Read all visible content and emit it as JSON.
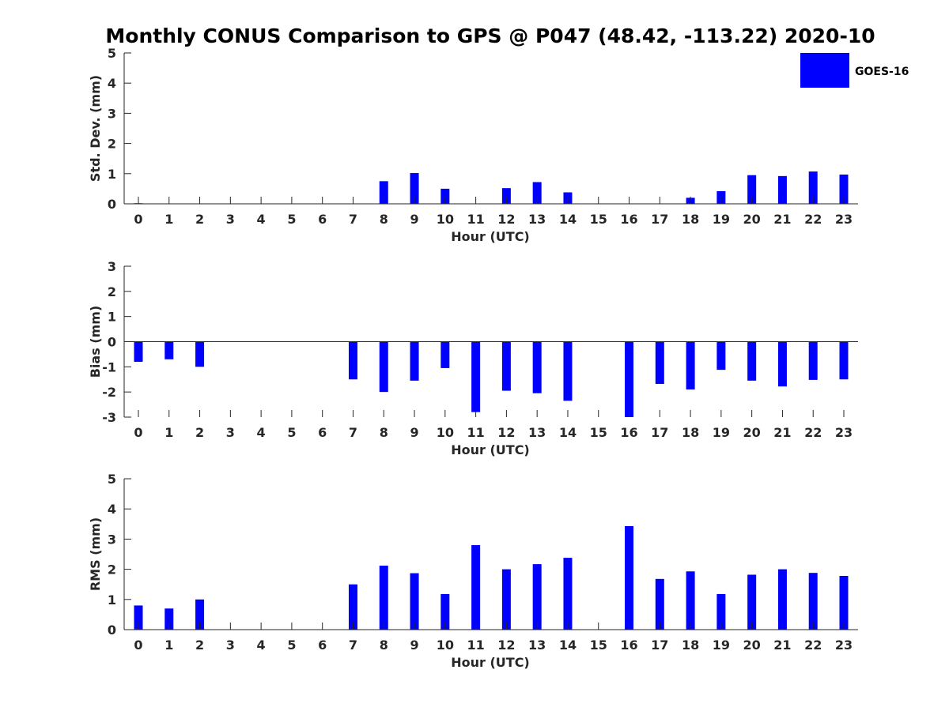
{
  "chart_data": {
    "title": "Monthly CONUS Comparison to GPS @ P047 (48.42, -113.22) 2020-10",
    "legend": {
      "placement": "top-right",
      "entries": [
        "GOES-16"
      ]
    },
    "series_color": "#0000ff",
    "panels": [
      {
        "type": "bar",
        "name": "std",
        "xlabel": "Hour (UTC)",
        "ylabel": "Std. Dev. (mm)",
        "ylim": [
          0,
          5
        ],
        "yticks": [
          0,
          1,
          2,
          3,
          4,
          5
        ],
        "categories": [
          0,
          1,
          2,
          3,
          4,
          5,
          6,
          7,
          8,
          9,
          10,
          11,
          12,
          13,
          14,
          15,
          16,
          17,
          18,
          19,
          20,
          21,
          22,
          23
        ],
        "series": [
          {
            "name": "GOES-16",
            "values": [
              0.02,
              0,
              0,
              0,
              0,
              0,
              0,
              0,
              0.75,
              1.02,
              0.5,
              0,
              0.52,
              0.72,
              0.38,
              0,
              0,
              0,
              0.2,
              0.42,
              0.95,
              0.92,
              1.07,
              0.97
            ]
          }
        ]
      },
      {
        "type": "bar",
        "name": "bias",
        "xlabel": "Hour (UTC)",
        "ylabel": "Bias (mm)",
        "ylim": [
          -3,
          3
        ],
        "yticks": [
          -3,
          -2,
          -1,
          0,
          1,
          2,
          3
        ],
        "categories": [
          0,
          1,
          2,
          3,
          4,
          5,
          6,
          7,
          8,
          9,
          10,
          11,
          12,
          13,
          14,
          15,
          16,
          17,
          18,
          19,
          20,
          21,
          22,
          23
        ],
        "series": [
          {
            "name": "GOES-16",
            "values": [
              -0.8,
              -0.7,
              -1.0,
              0,
              0,
              0,
              0,
              -1.5,
              -2.0,
              -1.55,
              -1.05,
              -2.8,
              -1.95,
              -2.05,
              -2.35,
              0,
              -3.0,
              -1.68,
              -1.9,
              -1.12,
              -1.55,
              -1.78,
              -1.52,
              -1.5
            ]
          }
        ]
      },
      {
        "type": "bar",
        "name": "rms",
        "xlabel": "Hour (UTC)",
        "ylabel": "RMS (mm)",
        "ylim": [
          0,
          5
        ],
        "yticks": [
          0,
          1,
          2,
          3,
          4,
          5
        ],
        "categories": [
          0,
          1,
          2,
          3,
          4,
          5,
          6,
          7,
          8,
          9,
          10,
          11,
          12,
          13,
          14,
          15,
          16,
          17,
          18,
          19,
          20,
          21,
          22,
          23
        ],
        "series": [
          {
            "name": "GOES-16",
            "values": [
              0.8,
              0.7,
              1.0,
              0,
              0,
              0,
              0,
              1.5,
              2.12,
              1.87,
              1.18,
              2.8,
              2.0,
              2.17,
              2.38,
              0,
              3.43,
              1.68,
              1.93,
              1.18,
              1.82,
              2.0,
              1.88,
              1.78
            ]
          }
        ]
      }
    ]
  }
}
